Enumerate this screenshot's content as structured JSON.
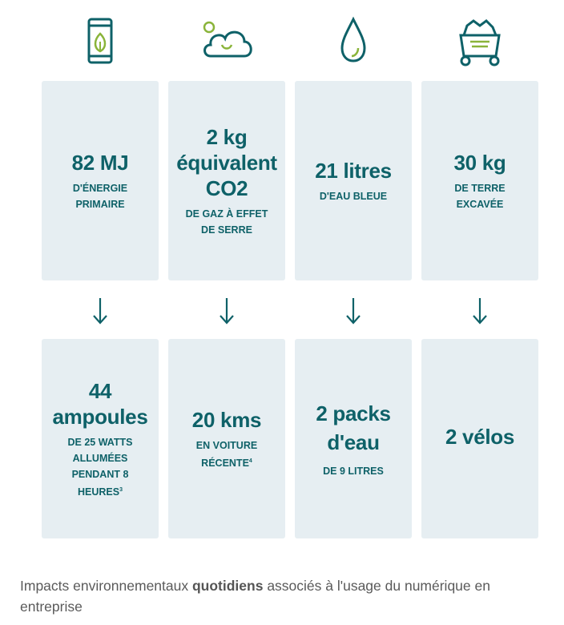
{
  "colors": {
    "card_bg": "#e6eef2",
    "teal": "#0e6168",
    "green": "#8ab43a",
    "caption": "#5a5a5a"
  },
  "icons": [
    "battery-leaf-icon",
    "cloud-co2-icon",
    "water-drop-icon",
    "mine-cart-icon"
  ],
  "top_cards": [
    {
      "big": "82 MJ",
      "small": "D'ÉNERGIE PRIMAIRE"
    },
    {
      "big": "2 kg équivalent CO2",
      "small": "DE GAZ À EFFET DE SERRE"
    },
    {
      "big": "21 litres",
      "small": "D'EAU BLEUE"
    },
    {
      "big": "30 kg",
      "small": "DE TERRE EXCAVÉE"
    }
  ],
  "bottom_cards": [
    {
      "big": "44 ampoules",
      "small": "DE 25 WATTS ALLUMÉES PENDANT 8 HEURES",
      "sup": "3"
    },
    {
      "big": "20 kms",
      "small": "EN VOITURE RÉCENTE",
      "sup": "4"
    },
    {
      "big": "2 packs d'eau",
      "small": "DE 9 LITRES",
      "sup": ""
    },
    {
      "big": "2 vélos",
      "small": "",
      "sup": ""
    }
  ],
  "caption": {
    "before": "Impacts environnementaux ",
    "bold": "quotidiens",
    "after": " associés à l'usage du numérique en entreprise"
  }
}
